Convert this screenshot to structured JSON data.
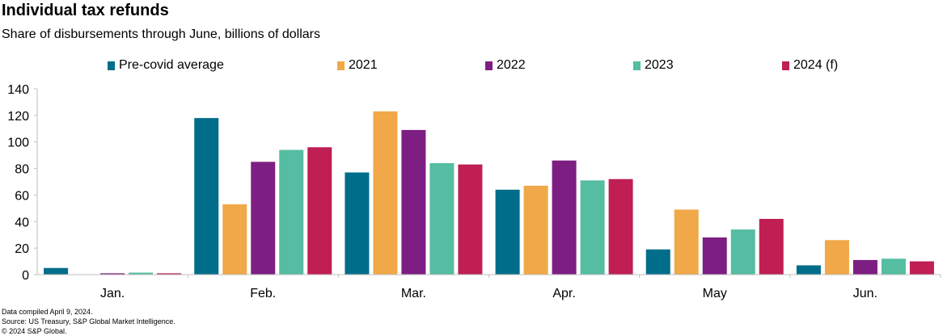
{
  "header": {
    "title": "Individual tax refunds",
    "subtitle": "Share of disbursements through June, billions of dollars"
  },
  "footer": {
    "notes": [
      "Data compiled April 9, 2024.",
      "Source: US Treasury, S&P Global Market Intelligence.",
      "© 2024 S&P Global."
    ]
  },
  "chart_data": {
    "type": "bar",
    "categories": [
      "Jan.",
      "Feb.",
      "Mar.",
      "Apr.",
      "May",
      "Jun."
    ],
    "series": [
      {
        "name": "Pre-covid average",
        "color": "#006d8a",
        "values": [
          5,
          118,
          77,
          64,
          19,
          7
        ]
      },
      {
        "name": "2021",
        "color": "#f0a848",
        "values": [
          0,
          53,
          123,
          67,
          49,
          26
        ]
      },
      {
        "name": "2022",
        "color": "#7d1f82",
        "values": [
          1,
          85,
          109,
          86,
          28,
          11
        ]
      },
      {
        "name": "2023",
        "color": "#55bda1",
        "values": [
          1.5,
          94,
          84,
          71,
          34,
          12
        ]
      },
      {
        "name": "2024 (f)",
        "color": "#bf1f52",
        "values": [
          1,
          96,
          83,
          72,
          42,
          10
        ]
      }
    ],
    "title": "Individual tax refunds",
    "xlabel": "",
    "ylabel": "",
    "ylim": [
      0,
      140
    ],
    "yticks": [
      0,
      20,
      40,
      60,
      80,
      100,
      120,
      140
    ],
    "grid": false,
    "legend": "top"
  }
}
